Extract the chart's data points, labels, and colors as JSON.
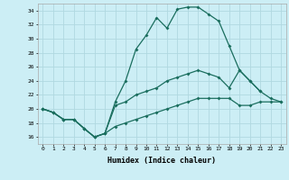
{
  "xlabel": "Humidex (Indice chaleur)",
  "bg_color": "#cceef5",
  "line_color": "#1a6e5e",
  "grid_color": "#b0d8e0",
  "xlim": [
    -0.5,
    23.5
  ],
  "ylim": [
    15.0,
    35.0
  ],
  "yticks": [
    16,
    18,
    20,
    22,
    24,
    26,
    28,
    30,
    32,
    34
  ],
  "xticks": [
    0,
    1,
    2,
    3,
    4,
    5,
    6,
    7,
    8,
    9,
    10,
    11,
    12,
    13,
    14,
    15,
    16,
    17,
    18,
    19,
    20,
    21,
    22,
    23
  ],
  "curve1_x": [
    0,
    1,
    2,
    3,
    4,
    5,
    6,
    7,
    8,
    9,
    10,
    11,
    12,
    13,
    14,
    15,
    16,
    17,
    18,
    19,
    20,
    21
  ],
  "curve1_y": [
    20.0,
    19.5,
    18.5,
    18.5,
    17.2,
    16.0,
    16.5,
    21.0,
    24.0,
    28.5,
    30.5,
    33.0,
    31.5,
    34.2,
    34.5,
    34.5,
    33.5,
    32.5,
    29.0,
    25.5,
    24.0,
    22.5
  ],
  "curve2_x": [
    0,
    1,
    2,
    3,
    4,
    5,
    6,
    7,
    8,
    9,
    10,
    11,
    12,
    13,
    14,
    15,
    16,
    17,
    18,
    19,
    20,
    21,
    22,
    23
  ],
  "curve2_y": [
    20.0,
    19.5,
    18.5,
    18.5,
    17.2,
    16.0,
    16.5,
    20.5,
    21.0,
    22.0,
    22.5,
    23.0,
    24.0,
    24.5,
    25.0,
    25.5,
    25.0,
    24.5,
    23.0,
    25.5,
    24.0,
    22.5,
    21.5,
    21.0
  ],
  "curve3_x": [
    0,
    1,
    2,
    3,
    4,
    5,
    6,
    7,
    8,
    9,
    10,
    11,
    12,
    13,
    14,
    15,
    16,
    17,
    18,
    19,
    20,
    21,
    22,
    23
  ],
  "curve3_y": [
    20.0,
    19.5,
    18.5,
    18.5,
    17.2,
    16.0,
    16.5,
    17.5,
    18.0,
    18.5,
    19.0,
    19.5,
    20.0,
    20.5,
    21.0,
    21.5,
    21.5,
    21.5,
    21.5,
    20.5,
    20.5,
    21.0,
    21.0,
    21.0
  ]
}
